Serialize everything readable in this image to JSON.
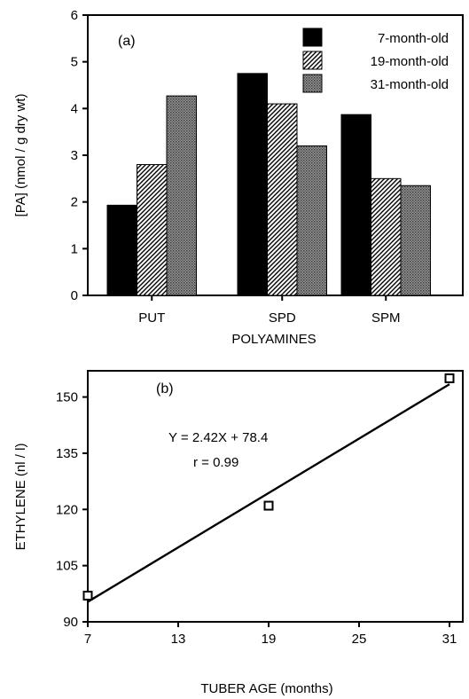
{
  "chart_data": [
    {
      "type": "bar",
      "panel_label": "(a)",
      "categories": [
        "PUT",
        "SPD",
        "SPM"
      ],
      "xlabel": "POLYAMINES",
      "ylabel": "[PA]  (nmol / g dry wt)",
      "ylim": [
        0,
        6
      ],
      "yticks": [
        "0",
        "1",
        "2",
        "3",
        "4",
        "5",
        "6"
      ],
      "legend_position": "top-right",
      "grid": false,
      "series": [
        {
          "name": "7-month-old",
          "values": [
            1.93,
            4.75,
            3.87
          ],
          "fill": "solid-black"
        },
        {
          "name": "19-month-old",
          "values": [
            2.8,
            4.1,
            2.5
          ],
          "fill": "diagonal-hatch"
        },
        {
          "name": "31-month-old",
          "values": [
            4.27,
            3.2,
            2.35
          ],
          "fill": "dot-stipple"
        }
      ]
    },
    {
      "type": "scatter",
      "panel_label": "(b)",
      "xlabel": "TUBER AGE (months)",
      "ylabel": "ETHYLENE (nl / l)",
      "xlim": [
        7,
        31
      ],
      "ylim": [
        90,
        157
      ],
      "xticks": [
        "7",
        "13",
        "19",
        "25",
        "31"
      ],
      "yticks": [
        "90",
        "105",
        "120",
        "135",
        "150"
      ],
      "grid": false,
      "points": [
        {
          "x": 7,
          "y": 97
        },
        {
          "x": 19,
          "y": 121
        },
        {
          "x": 31,
          "y": 155
        }
      ],
      "fit": {
        "slope": 2.42,
        "intercept": 78.4
      },
      "annotations": [
        "Y = 2.42X + 78.4",
        "r = 0.99"
      ]
    }
  ]
}
